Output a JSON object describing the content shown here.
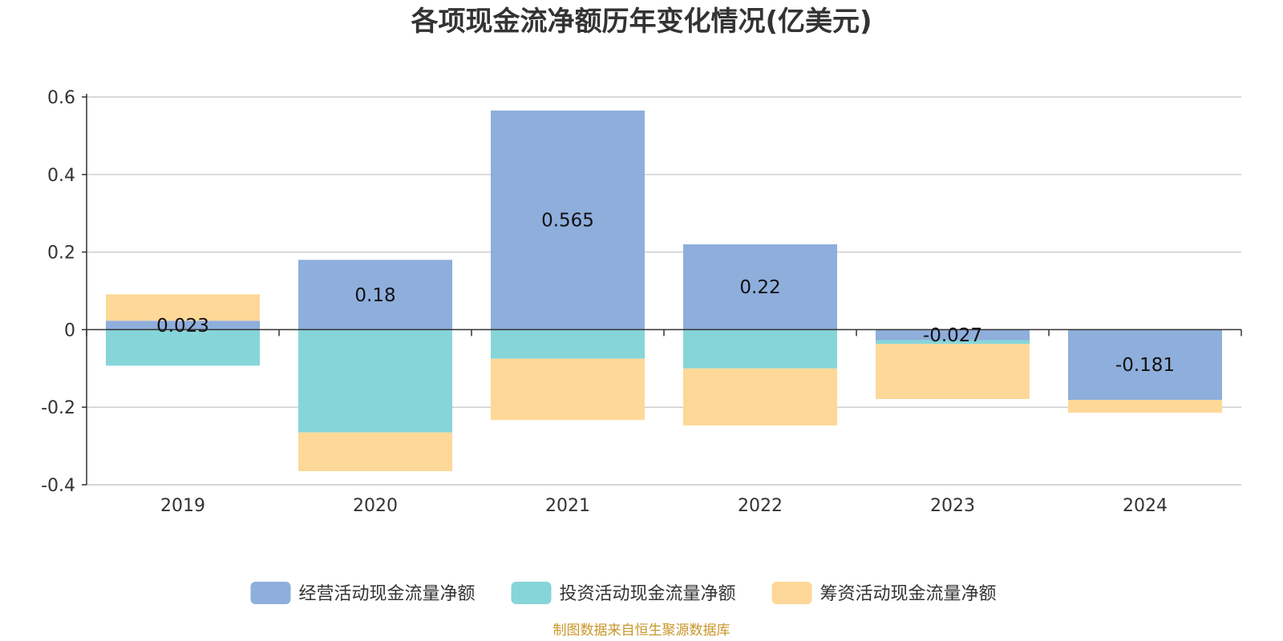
{
  "chart_data": {
    "type": "bar",
    "title": "各项现金流净额历年变化情况(亿美元)",
    "categories": [
      "2019",
      "2020",
      "2021",
      "2022",
      "2023",
      "2024"
    ],
    "series": [
      {
        "name": "经营活动现金流量净额",
        "color": "#8eaedc",
        "values": [
          0.023,
          0.18,
          0.565,
          0.22,
          -0.027,
          -0.181
        ],
        "labels": [
          "0.023",
          "0.18",
          "0.565",
          "0.22",
          "-0.027",
          "-0.181"
        ]
      },
      {
        "name": "投资活动现金流量净额",
        "color": "#86d5d9",
        "values": [
          -0.093,
          -0.265,
          -0.075,
          -0.1,
          -0.01,
          0
        ]
      },
      {
        "name": "筹资活动现金流量净额",
        "color": "#fed898",
        "values": [
          0.068,
          -0.1,
          -0.158,
          -0.147,
          -0.142,
          -0.033
        ]
      }
    ],
    "ylim": [
      -0.4,
      0.6
    ],
    "yticks": [
      0.6,
      0.4,
      0.2,
      0,
      -0.2,
      -0.4
    ],
    "ytick_labels": [
      "0.6",
      "0.4",
      "0.2",
      "0",
      "-0.2",
      "-0.4"
    ],
    "grid": true,
    "legend": "bottom-center",
    "xlabel": "",
    "ylabel": ""
  },
  "source": "制图数据来自恒生聚源数据库"
}
